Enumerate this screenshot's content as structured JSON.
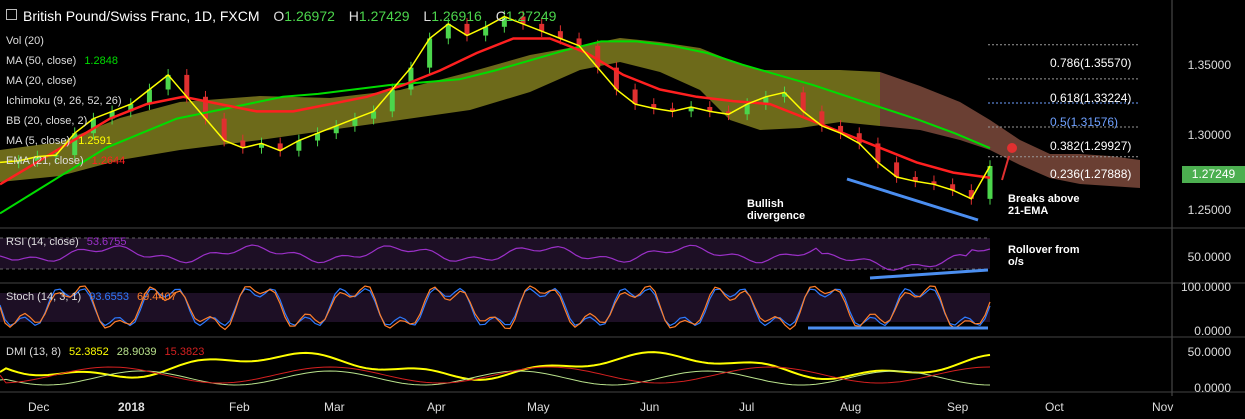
{
  "header": {
    "title": "British Pound/Swiss Franc, 1D, FXCM",
    "ohlc": [
      {
        "label": "O",
        "value": "1.26972"
      },
      {
        "label": "H",
        "value": "1.27429"
      },
      {
        "label": "L",
        "value": "1.26916"
      },
      {
        "label": "C",
        "value": "1.27249"
      }
    ]
  },
  "indicators": [
    {
      "label": "Vol (20)",
      "value": "",
      "color": "#dddddd"
    },
    {
      "label": "MA (50, close)",
      "value": "1.2848",
      "color": "#00dd00"
    },
    {
      "label": "MA (20, close)",
      "value": "",
      "color": "#dddddd"
    },
    {
      "label": "Ichimoku (9, 26, 52, 26)",
      "value": "",
      "color": "#dddddd"
    },
    {
      "label": "BB (20, close, 2)",
      "value": "",
      "color": "#dddddd"
    },
    {
      "label": "MA (5, close)",
      "value": "1.2591",
      "color": "#ffff00"
    },
    {
      "label": "EMA (21, close)",
      "value": "1.2644",
      "color": "#ff2020"
    }
  ],
  "price_tag": "1.27249",
  "colors": {
    "ma50": "#00dd00",
    "ma5": "#ffff00",
    "ema21": "#ff2020",
    "cloud_bull": "#807c1e",
    "cloud_bear": "#7d4a3c",
    "rsi": "#9b30c8",
    "stoch_k": "#2e7bff",
    "stoch_d": "#ff7f2a",
    "dmi_adx": "#ffff00",
    "dmi_plus": "#b9e28c",
    "dmi_minus": "#d42020",
    "trendline": "#4b8ef0"
  },
  "annotations": {
    "bullish": [
      "Bullish",
      "divergence"
    ],
    "breaks": [
      "Breaks above",
      "21-EMA"
    ],
    "rollover": [
      "Rollover from",
      "o/s"
    ]
  },
  "panels": {
    "rsi_label": "RSI (14, close)",
    "rsi_value": "53.6755",
    "stoch_label": "Stoch (14, 3, 1)",
    "stoch_k_value": "93.6553",
    "stoch_d_value": "69.4407",
    "dmi_label": "DMI (13, 8)",
    "dmi_adx_value": "52.3852",
    "dmi_plus_value": "28.9039",
    "dmi_minus_value": "15.3823"
  },
  "chart_data": {
    "type": "candlestick",
    "price_axis": {
      "ticks": [
        "1.35000",
        "1.30000",
        "1.25000"
      ],
      "tick_values": [
        1.35,
        1.3,
        1.25
      ],
      "range": [
        1.23,
        1.385
      ]
    },
    "fib_levels": [
      {
        "label": "0.786(1.35570)",
        "value": 1.3557
      },
      {
        "label": "0.618(1.33224)",
        "value": 1.33224
      },
      {
        "label": "0.5(1.31576)",
        "value": 1.31576,
        "color": "#6ea0ff"
      },
      {
        "label": "0.382(1.29927)",
        "value": 1.29927
      },
      {
        "label": "0.236(1.27888)",
        "value": 1.27888
      }
    ],
    "x_labels": [
      "Dec",
      "2018",
      "Feb",
      "Mar",
      "Apr",
      "May",
      "Jun",
      "Jul",
      "Aug",
      "Sep",
      "Oct",
      "Nov"
    ],
    "close_series": [
      1.275,
      1.276,
      1.279,
      1.28,
      1.295,
      1.305,
      1.31,
      1.315,
      1.325,
      1.335,
      1.32,
      1.305,
      1.29,
      1.285,
      1.288,
      1.283,
      1.29,
      1.295,
      1.3,
      1.305,
      1.31,
      1.325,
      1.34,
      1.36,
      1.37,
      1.362,
      1.368,
      1.375,
      1.37,
      1.365,
      1.36,
      1.355,
      1.34,
      1.325,
      1.315,
      1.312,
      1.31,
      1.313,
      1.31,
      1.308,
      1.315,
      1.32,
      1.323,
      1.31,
      1.3,
      1.295,
      1.288,
      1.275,
      1.265,
      1.262,
      1.26,
      1.256,
      1.25,
      1.2725
    ],
    "ma50_series": [
      1.24,
      1.255,
      1.27,
      1.285,
      1.295,
      1.305,
      1.31,
      1.315,
      1.32,
      1.322,
      1.325,
      1.328,
      1.33,
      1.332,
      1.338,
      1.345,
      1.352,
      1.358,
      1.358,
      1.355,
      1.35,
      1.342,
      1.335,
      1.328,
      1.32,
      1.312,
      1.304,
      1.295,
      1.2848
    ],
    "ema21_series": [
      1.26,
      1.275,
      1.29,
      1.305,
      1.315,
      1.32,
      1.315,
      1.31,
      1.31,
      1.315,
      1.32,
      1.328,
      1.338,
      1.35,
      1.36,
      1.36,
      1.35,
      1.335,
      1.325,
      1.32,
      1.317,
      1.315,
      1.305,
      1.295,
      1.285,
      1.275,
      1.268,
      1.2644
    ],
    "rsi_range": [
      0,
      100
    ],
    "rsi_ticks": [
      "50.0000"
    ],
    "stoch_ticks": [
      "100.0000",
      "0.0000"
    ],
    "dmi_ticks": [
      "50.0000",
      "0.0000"
    ]
  }
}
